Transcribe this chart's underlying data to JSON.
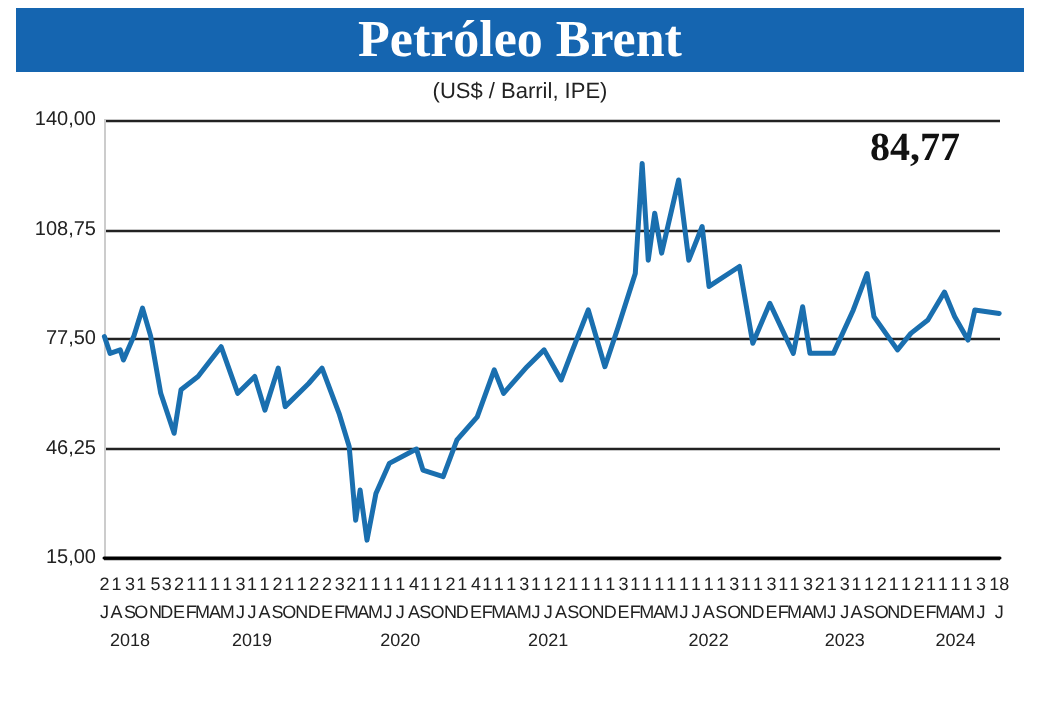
{
  "chart_data": {
    "type": "line",
    "title": "Petróleo Brent",
    "subtitle": "(US$ / Barril, IPE)",
    "annotations": [
      "84,77"
    ],
    "x": [
      "2018-07-02",
      "2018-07-16",
      "2018-08-10",
      "2018-08-18",
      "2018-09-13",
      "2018-10-04",
      "2018-10-24",
      "2018-11-18",
      "2018-12-21",
      "2019-01-07",
      "2019-02-18",
      "2019-04-16",
      "2019-05-27",
      "2019-07-08",
      "2019-08-02",
      "2019-09-04",
      "2019-09-21",
      "2019-11-18",
      "2019-12-21",
      "2020-02-01",
      "2020-02-26",
      "2020-03-13",
      "2020-03-24",
      "2020-04-10",
      "2020-05-02",
      "2020-06-04",
      "2020-08-10",
      "2020-08-26",
      "2020-10-15",
      "2020-11-18",
      "2021-01-07",
      "2021-02-18",
      "2021-03-13",
      "2021-05-10",
      "2021-06-21",
      "2021-08-02",
      "2021-08-27",
      "2021-10-08",
      "2021-11-18",
      "2021-12-21",
      "2022-02-01",
      "2022-02-18",
      "2022-03-05",
      "2022-03-21",
      "2022-04-07",
      "2022-05-19",
      "2022-06-13",
      "2022-07-16",
      "2022-08-02",
      "2022-10-16",
      "2022-11-18",
      "2022-12-30",
      "2023-02-26",
      "2023-03-21",
      "2023-04-08",
      "2023-06-05",
      "2023-07-24",
      "2023-08-27",
      "2023-09-13",
      "2023-11-10",
      "2023-12-13",
      "2024-01-24",
      "2024-03-05",
      "2024-03-30",
      "2024-05-02",
      "2024-05-19",
      "2024-07-18"
    ],
    "series": [
      {
        "color": "#1a6faf",
        "values": [
          78.2,
          73.4,
          74.4,
          71.5,
          78.4,
          86.3,
          78.4,
          62,
          50.6,
          63,
          66.8,
          75.3,
          62,
          66.8,
          57.2,
          69.2,
          58.2,
          64.8,
          69.2,
          56.3,
          46.8,
          25.8,
          34.4,
          20.1,
          33.4,
          42,
          46.1,
          40.1,
          38.2,
          48.7,
          55.3,
          68.7,
          62,
          69.6,
          74.4,
          65.8,
          73.4,
          85.8,
          69.6,
          81,
          96.2,
          127.6,
          100,
          113.4,
          102,
          122.9,
          100,
          109.6,
          92.5,
          98.2,
          76.3,
          87.7,
          73.4,
          86.7,
          73.4,
          73.4,
          85.8,
          96.2,
          83.9,
          74.4,
          79.1,
          82.9,
          90.9,
          83.9,
          77.2,
          85.8,
          84.8
        ]
      }
    ],
    "ylim": [
      15,
      140
    ],
    "yticks": [
      {
        "value": 15,
        "label": "15,00"
      },
      {
        "value": 46.25,
        "label": "46,25"
      },
      {
        "value": 77.5,
        "label": "77,50"
      },
      {
        "value": 108.75,
        "label": "108,75"
      },
      {
        "value": 140,
        "label": "140,00"
      }
    ],
    "xlim": [
      "2018-07-01",
      "2024-07-20"
    ],
    "xticks": [
      {
        "value": "2018-07-02",
        "label": "2\nJ"
      },
      {
        "value": "2018-08-01",
        "label": "1\nA"
      },
      {
        "value": "2018-09-03",
        "label": "3\nS\n2018"
      },
      {
        "value": "2018-10-01",
        "label": "1\nO"
      },
      {
        "value": "2018-11-05",
        "label": "5\nN"
      },
      {
        "value": "2018-12-03",
        "label": "3\nD"
      },
      {
        "value": "2019-01-02",
        "label": "2\nE"
      },
      {
        "value": "2019-02-01",
        "label": "1\nF"
      },
      {
        "value": "2019-03-01",
        "label": "1\nM"
      },
      {
        "value": "2019-04-01",
        "label": "1\nA"
      },
      {
        "value": "2019-05-01",
        "label": "1\nM"
      },
      {
        "value": "2019-06-03",
        "label": "3\nJ"
      },
      {
        "value": "2019-07-01",
        "label": "1\nJ\n2019"
      },
      {
        "value": "2019-08-01",
        "label": "1\nA"
      },
      {
        "value": "2019-09-02",
        "label": "2\nS"
      },
      {
        "value": "2019-10-01",
        "label": "1\nO"
      },
      {
        "value": "2019-11-01",
        "label": "1\nN"
      },
      {
        "value": "2019-12-02",
        "label": "2\nD"
      },
      {
        "value": "2020-01-02",
        "label": "2\nE"
      },
      {
        "value": "2020-02-03",
        "label": "3\nF"
      },
      {
        "value": "2020-03-02",
        "label": "2\nM"
      },
      {
        "value": "2020-04-01",
        "label": "1\nA"
      },
      {
        "value": "2020-05-01",
        "label": "1\nM"
      },
      {
        "value": "2020-06-01",
        "label": "1\nJ"
      },
      {
        "value": "2020-07-01",
        "label": "1\nJ\n2020"
      },
      {
        "value": "2020-08-04",
        "label": "4\nA"
      },
      {
        "value": "2020-09-01",
        "label": "1\nS"
      },
      {
        "value": "2020-10-01",
        "label": "1\nO"
      },
      {
        "value": "2020-11-02",
        "label": "2\nN"
      },
      {
        "value": "2020-12-01",
        "label": "1\nD"
      },
      {
        "value": "2021-01-04",
        "label": "4\nE"
      },
      {
        "value": "2021-02-01",
        "label": "1\nF"
      },
      {
        "value": "2021-03-01",
        "label": "1\nM"
      },
      {
        "value": "2021-04-01",
        "label": "1\nA"
      },
      {
        "value": "2021-05-03",
        "label": "3\nM"
      },
      {
        "value": "2021-06-01",
        "label": "1\nJ"
      },
      {
        "value": "2021-07-01",
        "label": "1\nJ\n2021"
      },
      {
        "value": "2021-08-02",
        "label": "2\nA"
      },
      {
        "value": "2021-09-01",
        "label": "1\nS"
      },
      {
        "value": "2021-10-01",
        "label": "1\nO"
      },
      {
        "value": "2021-11-01",
        "label": "1\nN"
      },
      {
        "value": "2021-12-01",
        "label": "1\nD"
      },
      {
        "value": "2022-01-03",
        "label": "3\nE"
      },
      {
        "value": "2022-02-01",
        "label": "1\nF"
      },
      {
        "value": "2022-03-01",
        "label": "1\nM"
      },
      {
        "value": "2022-04-01",
        "label": "1\nA"
      },
      {
        "value": "2022-05-01",
        "label": "1\nM"
      },
      {
        "value": "2022-06-01",
        "label": "1\nJ"
      },
      {
        "value": "2022-07-01",
        "label": "1\nJ"
      },
      {
        "value": "2022-08-01",
        "label": "1\nA\n2022"
      },
      {
        "value": "2022-09-01",
        "label": "1\nS"
      },
      {
        "value": "2022-10-03",
        "label": "3\nO"
      },
      {
        "value": "2022-11-01",
        "label": "1\nN"
      },
      {
        "value": "2022-12-01",
        "label": "1\nD"
      },
      {
        "value": "2023-01-03",
        "label": "3\nE"
      },
      {
        "value": "2023-02-01",
        "label": "1\nF"
      },
      {
        "value": "2023-03-01",
        "label": "1\nM"
      },
      {
        "value": "2023-04-03",
        "label": "3\nA"
      },
      {
        "value": "2023-05-02",
        "label": "2\nM"
      },
      {
        "value": "2023-06-01",
        "label": "1\nJ"
      },
      {
        "value": "2023-07-03",
        "label": "3\nJ\n2023"
      },
      {
        "value": "2023-08-01",
        "label": "1\nA"
      },
      {
        "value": "2023-09-01",
        "label": "1\nS"
      },
      {
        "value": "2023-10-02",
        "label": "2\nO"
      },
      {
        "value": "2023-11-01",
        "label": "1\nN"
      },
      {
        "value": "2023-12-01",
        "label": "1\nD"
      },
      {
        "value": "2024-01-02",
        "label": "2\nE"
      },
      {
        "value": "2024-02-01",
        "label": "1\nF"
      },
      {
        "value": "2024-03-01",
        "label": "1\nM"
      },
      {
        "value": "2024-04-01",
        "label": "1\nA\n2024"
      },
      {
        "value": "2024-05-01",
        "label": "1\nM"
      },
      {
        "value": "2024-06-03",
        "label": "3\nJ"
      },
      {
        "value": "2024-07-18",
        "label": "18\nJ"
      }
    ],
    "grid": "y",
    "marker": "none",
    "line_style": "solid"
  }
}
